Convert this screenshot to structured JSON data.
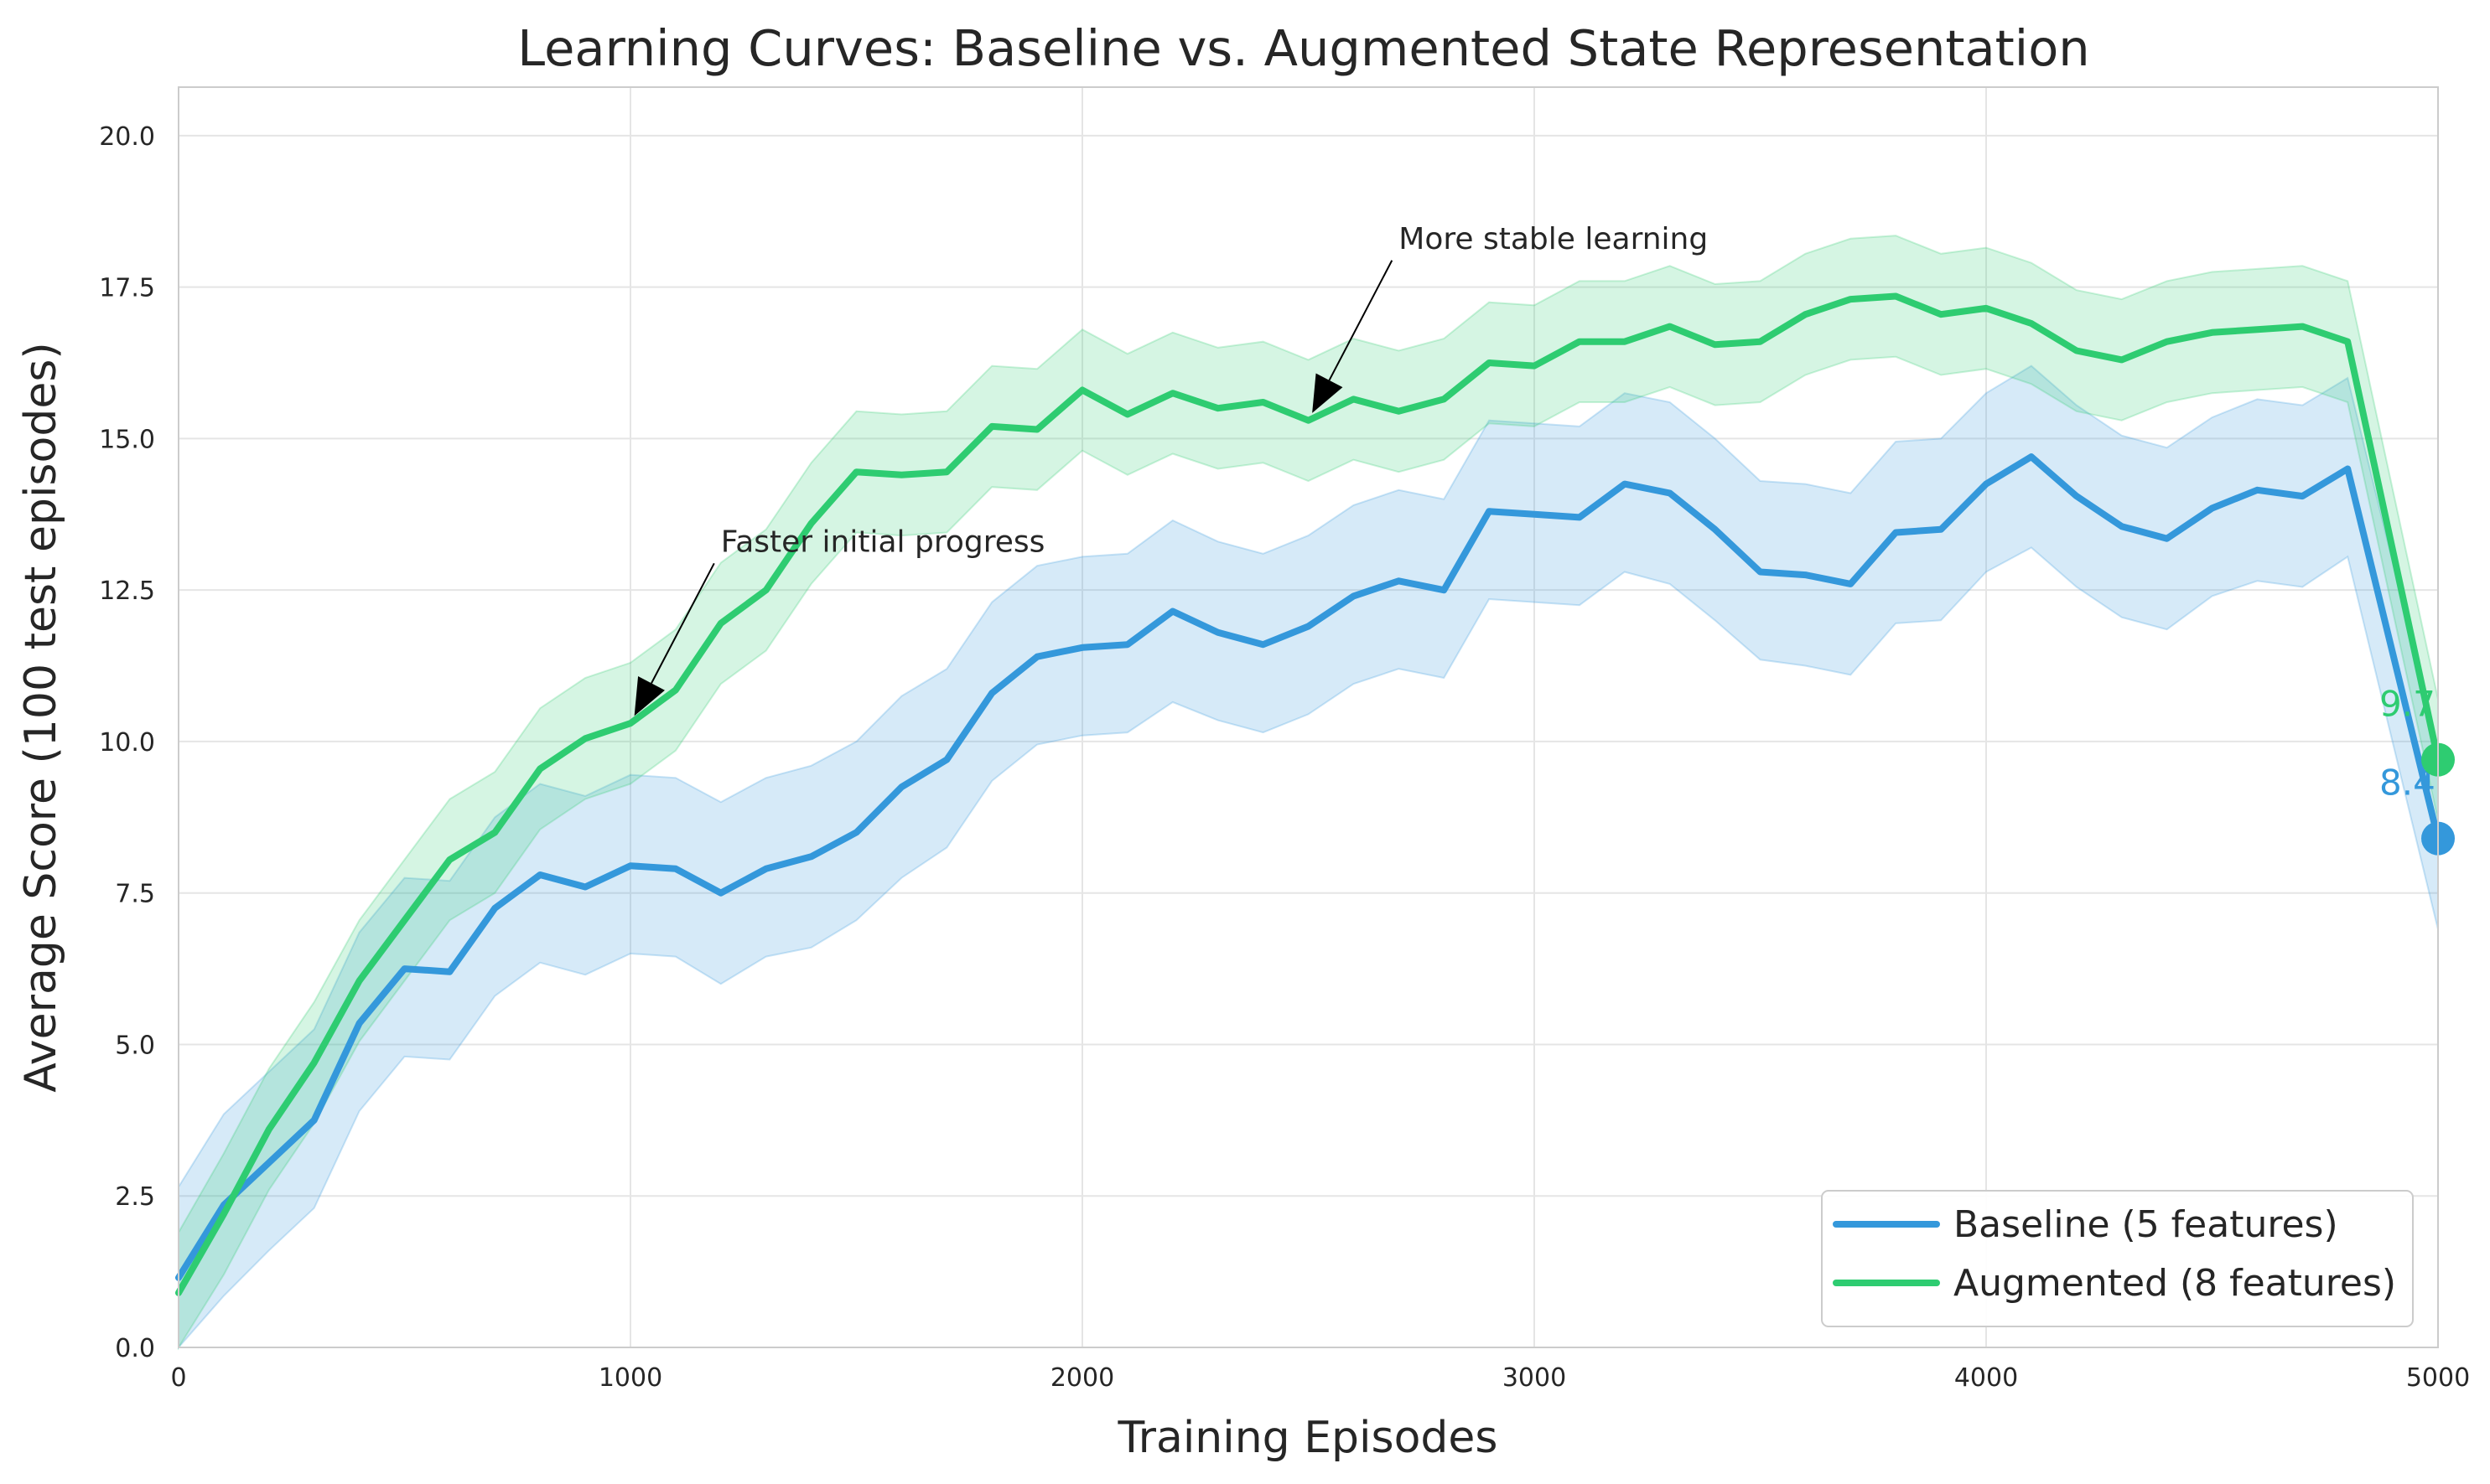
{
  "chart_data": {
    "type": "line",
    "title": "Learning Curves: Baseline vs. Augmented State Representation",
    "xlabel": "Training Episodes",
    "ylabel": "Average Score (100 test episodes)",
    "xlim": [
      0,
      5000
    ],
    "ylim": [
      0,
      20.8
    ],
    "xticks": [
      0,
      1000,
      2000,
      3000,
      4000,
      5000
    ],
    "xtick_labels": [
      "0",
      "1000",
      "2000",
      "3000",
      "4000",
      "5000"
    ],
    "yticks": [
      0,
      2.5,
      5,
      7.5,
      10,
      12.5,
      15,
      17.5,
      20
    ],
    "ytick_labels": [
      "0.0",
      "2.5",
      "5.0",
      "7.5",
      "10.0",
      "12.5",
      "15.0",
      "17.5",
      "20.0"
    ],
    "grid": true,
    "legend_position": "lower-right",
    "x": [
      0,
      100,
      200,
      300,
      400,
      500,
      600,
      700,
      800,
      900,
      1000,
      1100,
      1200,
      1300,
      1400,
      1500,
      1600,
      1700,
      1800,
      1900,
      2000,
      2100,
      2200,
      2300,
      2400,
      2500,
      2600,
      2700,
      2800,
      2900,
      3000,
      3100,
      3200,
      3300,
      3400,
      3500,
      3600,
      3700,
      3800,
      3900,
      4000,
      4100,
      4200,
      4300,
      4400,
      4500,
      4600,
      4700,
      4800,
      5000
    ],
    "series": [
      {
        "name": "Baseline (5 features)",
        "color": "#3498db",
        "band_color": "#3498db",
        "values": [
          1.15,
          2.35,
          3.05,
          3.75,
          5.35,
          6.25,
          6.2,
          7.25,
          7.8,
          7.6,
          7.95,
          7.9,
          7.5,
          7.9,
          8.1,
          8.5,
          9.25,
          9.7,
          10.8,
          11.4,
          11.55,
          11.6,
          12.15,
          11.8,
          11.6,
          11.9,
          12.4,
          12.65,
          12.5,
          13.8,
          13.75,
          13.7,
          14.25,
          14.1,
          13.5,
          12.8,
          12.75,
          12.6,
          13.45,
          13.5,
          14.25,
          14.7,
          14.05,
          13.55,
          13.35,
          13.85,
          14.15,
          14.05,
          14.5,
          8.4
        ],
        "lower": [
          0.0,
          0.85,
          1.6,
          2.3,
          3.9,
          4.8,
          4.75,
          5.8,
          6.35,
          6.15,
          6.5,
          6.45,
          6.0,
          6.45,
          6.6,
          7.05,
          7.75,
          8.25,
          9.35,
          9.95,
          10.1,
          10.15,
          10.65,
          10.35,
          10.15,
          10.45,
          10.95,
          11.2,
          11.05,
          12.35,
          12.3,
          12.25,
          12.8,
          12.6,
          12.0,
          11.35,
          11.25,
          11.1,
          11.95,
          12.0,
          12.8,
          13.2,
          12.55,
          12.05,
          11.85,
          12.4,
          12.65,
          12.55,
          13.05,
          6.9
        ],
        "upper": [
          2.65,
          3.85,
          4.55,
          5.25,
          6.85,
          7.75,
          7.7,
          8.75,
          9.3,
          9.1,
          9.45,
          9.4,
          9.0,
          9.4,
          9.6,
          10.0,
          10.75,
          11.2,
          12.3,
          12.9,
          13.05,
          13.1,
          13.65,
          13.3,
          13.1,
          13.4,
          13.9,
          14.15,
          14.0,
          15.3,
          15.25,
          15.2,
          15.75,
          15.6,
          15.0,
          14.3,
          14.25,
          14.1,
          14.95,
          15.0,
          15.75,
          16.2,
          15.55,
          15.05,
          14.85,
          15.35,
          15.65,
          15.55,
          16.0,
          9.9
        ]
      },
      {
        "name": "Augmented (8 features)",
        "color": "#2ecc71",
        "band_color": "#2ecc71",
        "values": [
          0.9,
          2.2,
          3.6,
          4.7,
          6.05,
          7.05,
          8.05,
          8.5,
          9.55,
          10.05,
          10.3,
          10.85,
          11.95,
          12.5,
          13.6,
          14.45,
          14.4,
          14.45,
          15.2,
          15.15,
          15.8,
          15.4,
          15.75,
          15.5,
          15.6,
          15.3,
          15.65,
          15.45,
          15.65,
          16.25,
          16.2,
          16.6,
          16.6,
          16.85,
          16.55,
          16.6,
          17.05,
          17.3,
          17.35,
          17.05,
          17.15,
          16.9,
          16.45,
          16.3,
          16.6,
          16.75,
          16.8,
          16.85,
          16.6,
          9.7
        ],
        "lower": [
          0.0,
          1.2,
          2.6,
          3.7,
          5.05,
          6.05,
          7.05,
          7.5,
          8.55,
          9.05,
          9.3,
          9.85,
          10.95,
          11.5,
          12.6,
          13.45,
          13.4,
          13.45,
          14.2,
          14.15,
          14.8,
          14.4,
          14.75,
          14.5,
          14.6,
          14.3,
          14.65,
          14.45,
          14.65,
          15.25,
          15.2,
          15.6,
          15.6,
          15.85,
          15.55,
          15.6,
          16.05,
          16.3,
          16.35,
          16.05,
          16.15,
          15.9,
          15.45,
          15.3,
          15.6,
          15.75,
          15.8,
          15.85,
          15.6,
          8.7
        ],
        "upper": [
          1.9,
          3.2,
          4.6,
          5.7,
          7.05,
          8.05,
          9.05,
          9.5,
          10.55,
          11.05,
          11.3,
          11.85,
          12.95,
          13.5,
          14.6,
          15.45,
          15.4,
          15.45,
          16.2,
          16.15,
          16.8,
          16.4,
          16.75,
          16.5,
          16.6,
          16.3,
          16.65,
          16.45,
          16.65,
          17.25,
          17.2,
          17.6,
          17.6,
          17.85,
          17.55,
          17.6,
          18.05,
          18.3,
          18.35,
          18.05,
          18.15,
          17.9,
          17.45,
          17.3,
          17.6,
          17.75,
          17.8,
          17.85,
          17.6,
          10.7
        ]
      }
    ],
    "end_labels": [
      {
        "series": 0,
        "x": 5000,
        "y": 8.4,
        "text": "8.4"
      },
      {
        "series": 1,
        "x": 5000,
        "y": 9.7,
        "text": "9.7"
      }
    ],
    "annotations": [
      {
        "text": "Faster initial progress",
        "point": [
          1000,
          10.3
        ],
        "text_at": [
          1200,
          13.3
        ]
      },
      {
        "text": "More stable learning",
        "point": [
          2500,
          15.3
        ],
        "text_at": [
          2700,
          18.3
        ]
      }
    ]
  }
}
